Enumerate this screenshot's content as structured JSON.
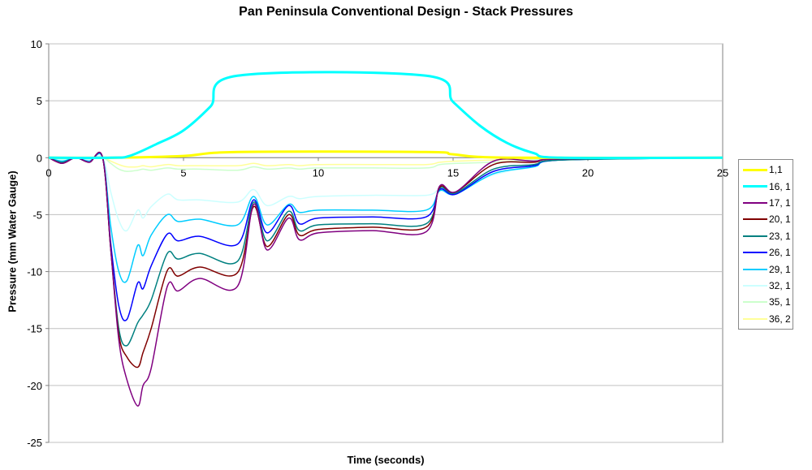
{
  "chart_data": {
    "type": "line",
    "title": "Pan Peninsula Conventional Design - Stack Pressures",
    "xlabel": "Time (seconds)",
    "ylabel": "Pressure (mm Water Gauge)",
    "xlim": [
      0,
      25
    ],
    "ylim": [
      -25,
      10
    ],
    "xticks": [
      0,
      5,
      10,
      15,
      20,
      25
    ],
    "yticks": [
      10,
      5,
      0,
      -5,
      -10,
      -15,
      -20,
      -25
    ],
    "grid": "horizontal",
    "legend": "right",
    "series": [
      {
        "name": "1,1",
        "color": "#ffff00",
        "thick": true,
        "x": [
          0,
          2.5,
          5,
          7,
          14,
          15,
          17,
          25
        ],
        "y": [
          0,
          0,
          0.15,
          0.5,
          0.5,
          0.3,
          0,
          0
        ]
      },
      {
        "name": "16, 1",
        "color": "#00ffff",
        "thick": true,
        "x": [
          0,
          2.3,
          3,
          4,
          5,
          6,
          7,
          14,
          15,
          16,
          17,
          18,
          19,
          25
        ],
        "y": [
          0,
          0,
          0.16,
          1.2,
          2.4,
          4.5,
          7.2,
          7.2,
          4.9,
          2.8,
          1.3,
          0.4,
          0,
          0
        ]
      },
      {
        "name": "17, 1",
        "color": "#800080",
        "x": [
          0,
          0.5,
          1,
          1.5,
          2,
          2.3,
          2.6,
          2.9,
          3.3,
          3.5,
          3.8,
          4.4,
          4.8,
          5.6,
          7.0,
          7.6,
          8.1,
          8.9,
          9.3,
          10,
          12,
          14,
          14.5,
          15.1,
          16.5,
          18,
          19,
          25
        ],
        "y": [
          0,
          -0.5,
          0,
          -0.4,
          0,
          -8,
          -16,
          -19.5,
          -21.8,
          -20,
          -18.5,
          -11.3,
          -11.7,
          -10.6,
          -11.3,
          -4.1,
          -8.1,
          -5.3,
          -7.2,
          -6.6,
          -6.4,
          -6.5,
          -2.5,
          -3,
          -0.3,
          -0.3,
          -0.1,
          0
        ]
      },
      {
        "name": "20, 1",
        "color": "#800000",
        "x": [
          0,
          0.5,
          1,
          1.5,
          2,
          2.3,
          2.6,
          2.9,
          3.3,
          3.5,
          3.8,
          4.4,
          4.8,
          5.6,
          7.0,
          7.6,
          8.1,
          8.9,
          9.3,
          10,
          12,
          14,
          14.5,
          15.1,
          16.5,
          18,
          19,
          25
        ],
        "y": [
          0,
          -0.5,
          0,
          -0.4,
          0,
          -8,
          -15.5,
          -17.5,
          -18.4,
          -17.1,
          -15,
          -9.9,
          -10.4,
          -9.6,
          -10.1,
          -4.3,
          -7.8,
          -5,
          -6.8,
          -6.3,
          -6.1,
          -6.1,
          -2.6,
          -3,
          -0.6,
          -0.4,
          -0.1,
          0
        ]
      },
      {
        "name": "23, 1",
        "color": "#008080",
        "x": [
          0,
          0.5,
          1,
          1.5,
          2,
          2.3,
          2.6,
          2.9,
          3.3,
          3.5,
          3.8,
          4.4,
          4.8,
          5.6,
          7.0,
          7.6,
          8.1,
          8.9,
          9.3,
          10,
          12,
          14,
          14.5,
          15.1,
          16.5,
          18,
          19,
          25
        ],
        "y": [
          0,
          -0.4,
          0,
          -0.4,
          0,
          -8,
          -15,
          -16.5,
          -14.5,
          -13.8,
          -12.5,
          -8.4,
          -8.9,
          -8.4,
          -9.1,
          -3.9,
          -7.3,
          -4.7,
          -6.4,
          -5.9,
          -5.8,
          -5.8,
          -2.7,
          -3.1,
          -1,
          -0.6,
          -0.2,
          0
        ]
      },
      {
        "name": "26, 1",
        "color": "#0000ff",
        "x": [
          0,
          0.5,
          1,
          1.5,
          2,
          2.3,
          2.6,
          2.9,
          3.3,
          3.5,
          3.8,
          4.4,
          4.8,
          5.6,
          7.0,
          7.6,
          8.1,
          8.9,
          9.3,
          10,
          12,
          14,
          14.5,
          15.1,
          16.5,
          18,
          19,
          25
        ],
        "y": [
          0,
          -0.4,
          0,
          -0.4,
          0,
          -7.5,
          -13,
          -14.2,
          -11,
          -11.5,
          -9.5,
          -6.7,
          -7.3,
          -6.9,
          -7.6,
          -3.7,
          -6.6,
          -4.2,
          -5.8,
          -5.3,
          -5.2,
          -5.2,
          -2.8,
          -3.2,
          -1.2,
          -0.7,
          -0.2,
          0
        ]
      },
      {
        "name": "29, 1",
        "color": "#00ccff",
        "x": [
          0,
          0.5,
          1,
          1.5,
          2,
          2.3,
          2.6,
          2.9,
          3.3,
          3.5,
          3.8,
          4.4,
          4.8,
          5.6,
          7.0,
          7.6,
          8.1,
          8.9,
          9.3,
          10,
          12,
          14,
          14.5,
          15.1,
          16.5,
          18,
          19,
          25
        ],
        "y": [
          0,
          -0.3,
          0,
          -0.3,
          0,
          -6,
          -10,
          -10.8,
          -7.7,
          -8.6,
          -6.8,
          -5.0,
          -5.6,
          -5.4,
          -5.9,
          -3.4,
          -5.9,
          -4.1,
          -4.8,
          -4.6,
          -4.6,
          -4.6,
          -2.9,
          -3.2,
          -1.4,
          -0.8,
          -0.2,
          0
        ]
      },
      {
        "name": "32, 1",
        "color": "#ccffff",
        "x": [
          0,
          0.5,
          1,
          1.5,
          2,
          2.3,
          2.6,
          2.9,
          3.3,
          3.5,
          3.8,
          4.4,
          4.8,
          5.6,
          7.0,
          7.6,
          8.1,
          8.9,
          9.3,
          10,
          12,
          14,
          14.5,
          15.1,
          16.5,
          18,
          19,
          25
        ],
        "y": [
          0,
          -0.2,
          0,
          -0.2,
          0,
          -3,
          -5.5,
          -6.4,
          -4.6,
          -5.3,
          -4.3,
          -3.2,
          -3.7,
          -3.7,
          -3.9,
          -2.8,
          -4.2,
          -3.4,
          -3.6,
          -3.4,
          -3.3,
          -3.3,
          -2.8,
          -3.0,
          -1.5,
          -0.8,
          -0.2,
          0
        ]
      },
      {
        "name": "35, 1",
        "color": "#ccffcc",
        "x": [
          0,
          0.5,
          1,
          1.5,
          2,
          2.3,
          2.6,
          2.9,
          3.3,
          3.5,
          3.8,
          4.4,
          4.8,
          5.6,
          7.0,
          7.6,
          8.1,
          8.9,
          9.3,
          10,
          12,
          14,
          14.5,
          15.1,
          16.5,
          18,
          19,
          25
        ],
        "y": [
          0,
          -0.1,
          0,
          -0.1,
          0,
          -0.5,
          -1.0,
          -1.2,
          -1.1,
          -1.0,
          -1.1,
          -0.9,
          -1.0,
          -1.0,
          -1.1,
          -0.8,
          -1.0,
          -0.9,
          -1.0,
          -0.9,
          -0.9,
          -0.9,
          -0.6,
          -0.5,
          -0.4,
          -0.2,
          -0.1,
          0
        ]
      },
      {
        "name": "36, 2",
        "color": "#ffff99",
        "x": [
          0,
          0.5,
          1,
          1.5,
          2,
          2.3,
          2.6,
          2.9,
          3.3,
          3.5,
          3.8,
          4.4,
          4.8,
          5.6,
          7.0,
          7.6,
          8.1,
          8.9,
          9.3,
          10,
          12,
          14,
          14.5,
          15.1,
          16.5,
          18,
          19,
          25
        ],
        "y": [
          0,
          0,
          0,
          0,
          0,
          -0.3,
          -0.6,
          -0.8,
          -0.8,
          -0.7,
          -0.8,
          -0.6,
          -0.7,
          -0.7,
          -0.7,
          -0.5,
          -0.7,
          -0.6,
          -0.7,
          -0.6,
          -0.6,
          -0.6,
          -0.4,
          -0.3,
          -0.2,
          -0.1,
          -0.1,
          0
        ]
      }
    ]
  }
}
